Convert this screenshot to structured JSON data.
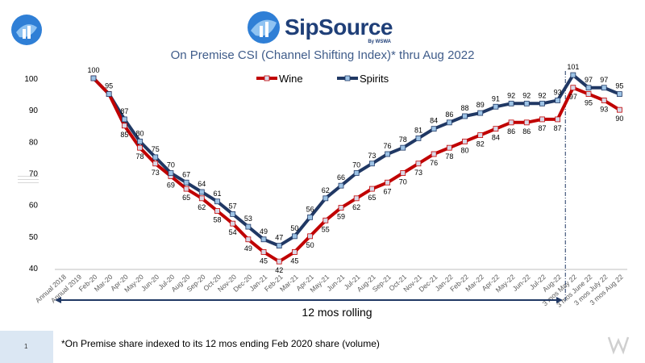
{
  "brand": {
    "name": "SipSource",
    "sub": "By WSWA"
  },
  "footer": {
    "page_number": "1",
    "footnote": "*On Premise share indexed to its 12 mos ending Feb 2020 share (volume)"
  },
  "colors": {
    "wine": "#c00000",
    "spirits": "#203864",
    "marker_fill": "#9dc3e6",
    "marker_fill_wine": "#d9d9e8",
    "axis_text": "#595959"
  },
  "chart_data": {
    "type": "line",
    "title": "On Premise CSI (Channel Shifting Index)* thru Aug 2022",
    "xlabel": "",
    "ylabel": "",
    "ylim": [
      40,
      100
    ],
    "yticks": [
      40,
      50,
      60,
      70,
      80,
      90,
      100
    ],
    "grid": false,
    "legend_position": "top-center",
    "annotation": "12 mos rolling",
    "categories": [
      "Annual 2018",
      "Annual 2019",
      "Feb-20",
      "Mar-20",
      "Apr-20",
      "May-20",
      "Jun-20",
      "Jul-20",
      "Aug-20",
      "Sep-20",
      "Oct-20",
      "Nov-20",
      "Dec-20",
      "Jan-21",
      "Feb-21",
      "Mar-21",
      "Apr-21",
      "May-21",
      "Jun-21",
      "Jul-21",
      "Aug-21",
      "Sep-21",
      "Oct-21",
      "Nov-21",
      "Dec-21",
      "Jan-22",
      "Feb-22",
      "Mar-22",
      "Apr-22",
      "May-22",
      "Jun-22",
      "Jul-22",
      "Aug-22",
      "3 mos May 22",
      "3 mos June 22",
      "3 mos July 22",
      "3 mos Aug 22"
    ],
    "series": [
      {
        "name": "Wine",
        "values": [
          null,
          null,
          100,
          95,
          85,
          78,
          73,
          69,
          65,
          62,
          58,
          54,
          49,
          45,
          42,
          45,
          50,
          55,
          59,
          62,
          65,
          67,
          70,
          73,
          76,
          78,
          80,
          82,
          84,
          86,
          86,
          87,
          87,
          97,
          95,
          93,
          90
        ]
      },
      {
        "name": "Spirits",
        "values": [
          null,
          null,
          100,
          95,
          87,
          80,
          75,
          70,
          67,
          64,
          61,
          57,
          53,
          49,
          47,
          50,
          56,
          62,
          66,
          70,
          73,
          76,
          78,
          81,
          84,
          86,
          88,
          89,
          91,
          92,
          92,
          92,
          93,
          101,
          97,
          97,
          95
        ]
      }
    ]
  }
}
